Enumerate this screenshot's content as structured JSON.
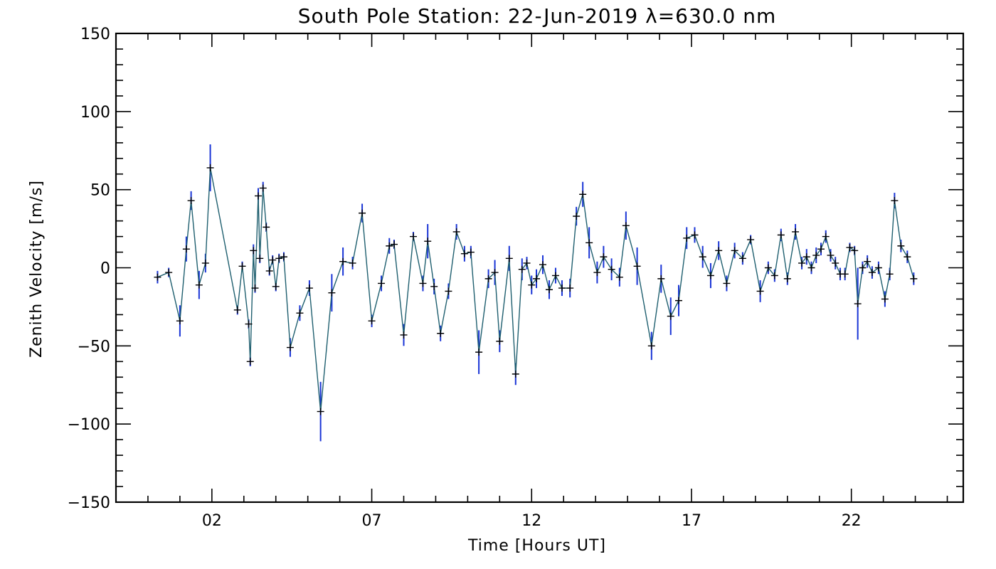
{
  "chart_data": {
    "type": "line",
    "title": "South Pole Station: 22-Jun-2019 λ=630.0 nm",
    "xlabel": "Time [Hours UT]",
    "ylabel": "Zenith Velocity [m/s]",
    "xlim": [
      -1.0,
      25.5
    ],
    "ylim": [
      -150,
      150
    ],
    "x_ticks": [
      {
        "value": 2,
        "label": "02"
      },
      {
        "value": 7,
        "label": "07"
      },
      {
        "value": 12,
        "label": "12"
      },
      {
        "value": 17,
        "label": "17"
      },
      {
        "value": 22,
        "label": "22"
      }
    ],
    "y_ticks": [
      {
        "value": -150,
        "label": "−150"
      },
      {
        "value": -100,
        "label": "−100"
      },
      {
        "value": -50,
        "label": "−50"
      },
      {
        "value": 0,
        "label": "0"
      },
      {
        "value": 50,
        "label": "50"
      },
      {
        "value": 100,
        "label": "100"
      },
      {
        "value": 150,
        "label": "150"
      }
    ],
    "grid": false,
    "line_color": "#1f5f6f",
    "marker_color": "#000000",
    "errorbar_color": "#1a35d6",
    "series": [
      {
        "points": [
          {
            "x": 0.3,
            "y": -6,
            "err": 4
          },
          {
            "x": 0.65,
            "y": -3,
            "err": 3
          },
          {
            "x": 1.0,
            "y": -34,
            "err": 10
          },
          {
            "x": 1.2,
            "y": 12,
            "err": 8
          },
          {
            "x": 1.35,
            "y": 43,
            "err": 6
          },
          {
            "x": 1.6,
            "y": -11,
            "err": 9
          },
          {
            "x": 1.8,
            "y": 3,
            "err": 6
          },
          {
            "x": 1.95,
            "y": 64,
            "err": 15
          },
          {
            "x": 2.8,
            "y": -27,
            "err": 3
          },
          {
            "x": 2.95,
            "y": 1,
            "err": 3
          },
          {
            "x": 3.15,
            "y": -36,
            "err": 3
          },
          {
            "x": 3.2,
            "y": -60,
            "err": 3
          },
          {
            "x": 3.3,
            "y": 11,
            "err": 4
          },
          {
            "x": 3.35,
            "y": -13,
            "err": 3
          },
          {
            "x": 3.45,
            "y": 46,
            "err": 5
          },
          {
            "x": 3.5,
            "y": 6,
            "err": 3
          },
          {
            "x": 3.6,
            "y": 51,
            "err": 4
          },
          {
            "x": 3.7,
            "y": 26,
            "err": 3
          },
          {
            "x": 3.8,
            "y": -2,
            "err": 3
          },
          {
            "x": 3.9,
            "y": 5,
            "err": 3
          },
          {
            "x": 4.0,
            "y": -12,
            "err": 3
          },
          {
            "x": 4.1,
            "y": 6,
            "err": 3
          },
          {
            "x": 4.25,
            "y": 7,
            "err": 3
          },
          {
            "x": 4.45,
            "y": -51,
            "err": 6
          },
          {
            "x": 4.75,
            "y": -29,
            "err": 5
          },
          {
            "x": 5.05,
            "y": -13,
            "err": 5
          },
          {
            "x": 5.4,
            "y": -92,
            "err": 19
          },
          {
            "x": 5.75,
            "y": -16,
            "err": 12
          },
          {
            "x": 6.1,
            "y": 4,
            "err": 9
          },
          {
            "x": 6.4,
            "y": 3,
            "err": 4
          },
          {
            "x": 6.7,
            "y": 35,
            "err": 6
          },
          {
            "x": 7.0,
            "y": -34,
            "err": 4
          },
          {
            "x": 7.3,
            "y": -10,
            "err": 5
          },
          {
            "x": 7.55,
            "y": 14,
            "err": 5
          },
          {
            "x": 7.7,
            "y": 15,
            "err": 3
          },
          {
            "x": 8.0,
            "y": -43,
            "err": 7
          },
          {
            "x": 8.3,
            "y": 20,
            "err": 3
          },
          {
            "x": 8.6,
            "y": -10,
            "err": 5
          },
          {
            "x": 8.75,
            "y": 17,
            "err": 11
          },
          {
            "x": 8.95,
            "y": -12,
            "err": 5
          },
          {
            "x": 9.15,
            "y": -42,
            "err": 5
          },
          {
            "x": 9.4,
            "y": -15,
            "err": 5
          },
          {
            "x": 9.65,
            "y": 23,
            "err": 5
          },
          {
            "x": 9.9,
            "y": 9,
            "err": 5
          },
          {
            "x": 10.1,
            "y": 10,
            "err": 4
          },
          {
            "x": 10.35,
            "y": -54,
            "err": 14
          },
          {
            "x": 10.65,
            "y": -7,
            "err": 6
          },
          {
            "x": 10.85,
            "y": -3,
            "err": 8
          },
          {
            "x": 11.0,
            "y": -47,
            "err": 7
          },
          {
            "x": 11.3,
            "y": 6,
            "err": 8
          },
          {
            "x": 11.5,
            "y": -68,
            "err": 7
          },
          {
            "x": 11.7,
            "y": -1,
            "err": 7
          },
          {
            "x": 11.85,
            "y": 3,
            "err": 4
          },
          {
            "x": 12.0,
            "y": -11,
            "err": 6
          },
          {
            "x": 12.15,
            "y": -7,
            "err": 6
          },
          {
            "x": 12.35,
            "y": 2,
            "err": 6
          },
          {
            "x": 12.55,
            "y": -14,
            "err": 6
          },
          {
            "x": 12.75,
            "y": -5,
            "err": 5
          },
          {
            "x": 12.95,
            "y": -13,
            "err": 5
          },
          {
            "x": 13.2,
            "y": -13,
            "err": 6
          },
          {
            "x": 13.4,
            "y": 33,
            "err": 6
          },
          {
            "x": 13.6,
            "y": 47,
            "err": 8
          },
          {
            "x": 13.8,
            "y": 16,
            "err": 10
          },
          {
            "x": 14.05,
            "y": -3,
            "err": 7
          },
          {
            "x": 14.25,
            "y": 7,
            "err": 7
          },
          {
            "x": 14.5,
            "y": -1,
            "err": 7
          },
          {
            "x": 14.75,
            "y": -6,
            "err": 6
          },
          {
            "x": 14.95,
            "y": 27,
            "err": 9
          },
          {
            "x": 15.3,
            "y": 1,
            "err": 12
          },
          {
            "x": 15.75,
            "y": -50,
            "err": 9
          },
          {
            "x": 16.05,
            "y": -7,
            "err": 9
          },
          {
            "x": 16.35,
            "y": -31,
            "err": 12
          },
          {
            "x": 16.6,
            "y": -21,
            "err": 10
          },
          {
            "x": 16.85,
            "y": 19,
            "err": 7
          },
          {
            "x": 17.1,
            "y": 21,
            "err": 5
          },
          {
            "x": 17.35,
            "y": 7,
            "err": 7
          },
          {
            "x": 17.6,
            "y": -5,
            "err": 8
          },
          {
            "x": 17.85,
            "y": 11,
            "err": 6
          },
          {
            "x": 18.1,
            "y": -10,
            "err": 5
          },
          {
            "x": 18.35,
            "y": 11,
            "err": 5
          },
          {
            "x": 18.6,
            "y": 6,
            "err": 4
          },
          {
            "x": 18.85,
            "y": 18,
            "err": 3
          },
          {
            "x": 19.15,
            "y": -15,
            "err": 7
          },
          {
            "x": 19.4,
            "y": 0,
            "err": 4
          },
          {
            "x": 19.6,
            "y": -5,
            "err": 4
          },
          {
            "x": 19.8,
            "y": 21,
            "err": 4
          },
          {
            "x": 20.0,
            "y": -7,
            "err": 4
          },
          {
            "x": 20.25,
            "y": 23,
            "err": 5
          },
          {
            "x": 20.45,
            "y": 3,
            "err": 4
          },
          {
            "x": 20.6,
            "y": 7,
            "err": 5
          },
          {
            "x": 20.75,
            "y": 0,
            "err": 4
          },
          {
            "x": 20.9,
            "y": 8,
            "err": 5
          },
          {
            "x": 21.05,
            "y": 12,
            "err": 4
          },
          {
            "x": 21.2,
            "y": 20,
            "err": 4
          },
          {
            "x": 21.35,
            "y": 8,
            "err": 4
          },
          {
            "x": 21.5,
            "y": 3,
            "err": 4
          },
          {
            "x": 21.65,
            "y": -4,
            "err": 4
          },
          {
            "x": 21.8,
            "y": -4,
            "err": 4
          },
          {
            "x": 21.95,
            "y": 13,
            "err": 3
          },
          {
            "x": 22.1,
            "y": 11,
            "err": 3
          },
          {
            "x": 22.2,
            "y": -23,
            "err": 23
          },
          {
            "x": 22.35,
            "y": 0,
            "err": 4
          },
          {
            "x": 22.5,
            "y": 4,
            "err": 4
          },
          {
            "x": 22.65,
            "y": -3,
            "err": 4
          },
          {
            "x": 22.85,
            "y": 0,
            "err": 4
          },
          {
            "x": 23.05,
            "y": -20,
            "err": 5
          },
          {
            "x": 23.2,
            "y": -4,
            "err": 4
          },
          {
            "x": 23.35,
            "y": 43,
            "err": 5
          },
          {
            "x": 23.55,
            "y": 14,
            "err": 4
          },
          {
            "x": 23.75,
            "y": 7,
            "err": 4
          },
          {
            "x": 23.95,
            "y": -7,
            "err": 4
          }
        ]
      }
    ]
  }
}
